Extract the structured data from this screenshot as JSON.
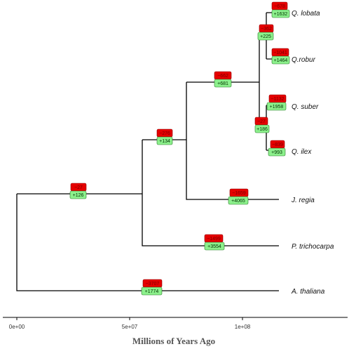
{
  "colors": {
    "loss_box": "#e60000",
    "gain_box": "#8cf08c",
    "branch": "#000000"
  },
  "axis": {
    "title": "Millions of Years Ago",
    "ticks": [
      {
        "value": 0,
        "label": "0e+00"
      },
      {
        "value": 50000000,
        "label": "5e+07"
      },
      {
        "value": 100000000,
        "label": "1e+08"
      }
    ],
    "range": [
      -3000000,
      146000000
    ]
  },
  "tips": [
    {
      "id": "lobata",
      "label": "Q. lobata"
    },
    {
      "id": "robur",
      "label": "Q.robur"
    },
    {
      "id": "suber",
      "label": "Q. suber"
    },
    {
      "id": "ilex",
      "label": "Q. ilex"
    },
    {
      "id": "regia",
      "label": "J. regia"
    },
    {
      "id": "trichocarpa",
      "label": "P. trichocarpa"
    },
    {
      "id": "thaliana",
      "label": "A. thaliana"
    }
  ],
  "branch_events": [
    {
      "id": "e-lobata",
      "loss": "−678",
      "gain": "+1632"
    },
    {
      "id": "e-robur",
      "loss": "−1041",
      "gain": "+1464"
    },
    {
      "id": "e-lobata-robur",
      "loss": "−362",
      "gain": "+225"
    },
    {
      "id": "e-suber",
      "loss": "−1132",
      "gain": "+1958"
    },
    {
      "id": "e-ilex",
      "loss": "−839",
      "gain": "+993"
    },
    {
      "id": "e-suber-ilex",
      "loss": "−27",
      "gain": "+186"
    },
    {
      "id": "e-quercus",
      "loss": "−662",
      "gain": "+681"
    },
    {
      "id": "e-regia",
      "loss": "−1659",
      "gain": "+4065"
    },
    {
      "id": "e-fagales",
      "loss": "−276",
      "gain": "+134"
    },
    {
      "id": "e-trichocarpa",
      "loss": "−1499",
      "gain": "+3554"
    },
    {
      "id": "e-rosids",
      "loss": "−27",
      "gain": "+126"
    },
    {
      "id": "e-thaliana",
      "loss": "−3707",
      "gain": "+1774"
    }
  ]
}
